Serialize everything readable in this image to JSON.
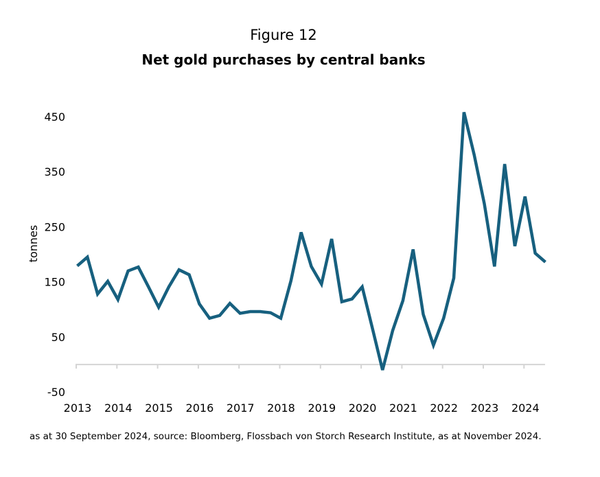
{
  "chart_data": {
    "type": "line",
    "figure_label": "Figure 12",
    "title": "Net gold purchases by central banks",
    "xlabel": "",
    "ylabel": "tonnes",
    "ylim": [
      -50,
      450
    ],
    "yticks": [
      450,
      350,
      250,
      150,
      50,
      -50
    ],
    "xticks": [
      "2013",
      "2014",
      "2015",
      "2016",
      "2017",
      "2018",
      "2019",
      "2020",
      "2021",
      "2022",
      "2023",
      "2024"
    ],
    "xlim": [
      2013,
      2024.5
    ],
    "grid": false,
    "legend": "none",
    "line_color": "#17607f",
    "axis_color": "#d4d4d4",
    "series": [
      {
        "frequency": "quarterly",
        "start": "2013 Q1",
        "end": "2024 Q3",
        "values": [
          179,
          195,
          128,
          151,
          118,
          170,
          177,
          141,
          104,
          141,
          172,
          163,
          110,
          84,
          89,
          111,
          93,
          96,
          96,
          94,
          84,
          152,
          240,
          178,
          146,
          228,
          114,
          119,
          141,
          66,
          -10,
          62,
          116,
          209,
          91,
          35,
          84,
          157,
          458,
          381,
          292,
          178,
          364,
          215,
          305,
          202,
          186
        ]
      }
    ],
    "footnote": "as at 30 September 2024, source: Bloomberg, Flossbach von Storch Research Institute, as at November 2024."
  }
}
